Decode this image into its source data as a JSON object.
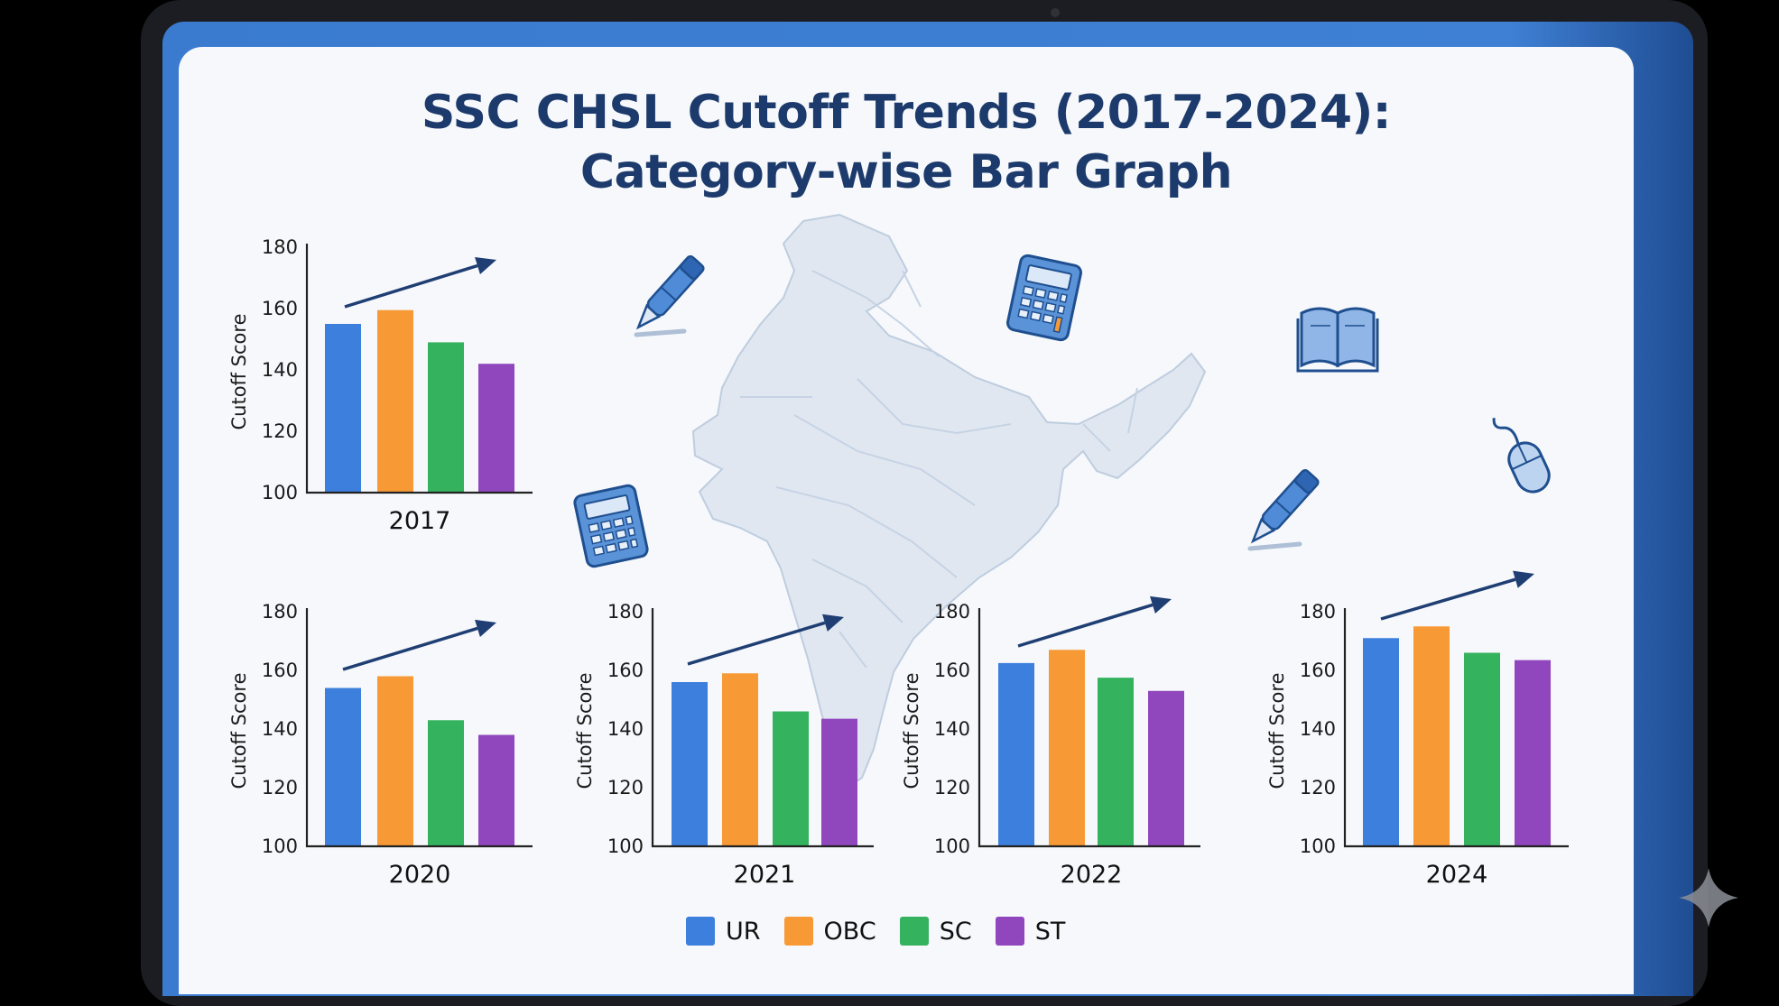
{
  "title": {
    "line1": "SSC CHSL Cutoff Trends (2017-2024):",
    "line2": "Category-wise Bar Graph"
  },
  "colors": {
    "UR": "#3d7fdc",
    "OBC": "#f79a36",
    "SC": "#35b25e",
    "ST": "#9047bd",
    "title": "#1c3a6b",
    "trend_arrow": "#1f3e73"
  },
  "decorations": [
    "india-map",
    "pen-icon",
    "calculator-icon",
    "book-icon",
    "mouse-icon",
    "sparkle-icon"
  ],
  "chart_data": [
    {
      "type": "bar",
      "xlabel": "2017",
      "ylabel": "Cutoff Score",
      "ylim": [
        100,
        180
      ],
      "yticks": [
        100,
        120,
        140,
        160,
        180
      ],
      "categories": [
        "UR",
        "OBC",
        "SC",
        "ST"
      ],
      "values": [
        155,
        159.5,
        149,
        142
      ],
      "trend_arrow": true,
      "grid": false
    },
    {
      "type": "bar",
      "xlabel": "2020",
      "ylabel": "Cutoff Score",
      "ylim": [
        100,
        180
      ],
      "yticks": [
        100,
        120,
        140,
        160,
        180
      ],
      "categories": [
        "UR",
        "OBC",
        "SC",
        "ST"
      ],
      "values": [
        154,
        158,
        143,
        138
      ],
      "trend_arrow": true,
      "grid": false
    },
    {
      "type": "bar",
      "xlabel": "2021",
      "ylabel": "Cutoff Score",
      "ylim": [
        100,
        180
      ],
      "yticks": [
        100,
        120,
        140,
        160,
        180
      ],
      "categories": [
        "UR",
        "OBC",
        "SC",
        "ST"
      ],
      "values": [
        156,
        159,
        146,
        143.5
      ],
      "trend_arrow": true,
      "grid": false
    },
    {
      "type": "bar",
      "xlabel": "2022",
      "ylabel": "Cutoff Score",
      "ylim": [
        100,
        180
      ],
      "yticks": [
        100,
        120,
        140,
        160,
        180
      ],
      "categories": [
        "UR",
        "OBC",
        "SC",
        "ST"
      ],
      "values": [
        162.5,
        167,
        157.5,
        153
      ],
      "trend_arrow": true,
      "grid": false
    },
    {
      "type": "bar",
      "xlabel": "2024",
      "ylabel": "Cutoff Score",
      "ylim": [
        100,
        180
      ],
      "yticks": [
        100,
        120,
        140,
        160,
        180
      ],
      "categories": [
        "UR",
        "OBC",
        "SC",
        "ST"
      ],
      "values": [
        171,
        175,
        166,
        163.5
      ],
      "trend_arrow": true,
      "grid": false
    }
  ],
  "legend": [
    {
      "label": "UR",
      "color": "#3d7fdc"
    },
    {
      "label": "OBC",
      "color": "#f79a36"
    },
    {
      "label": "SC",
      "color": "#35b25e"
    },
    {
      "label": "ST",
      "color": "#9047bd"
    }
  ]
}
